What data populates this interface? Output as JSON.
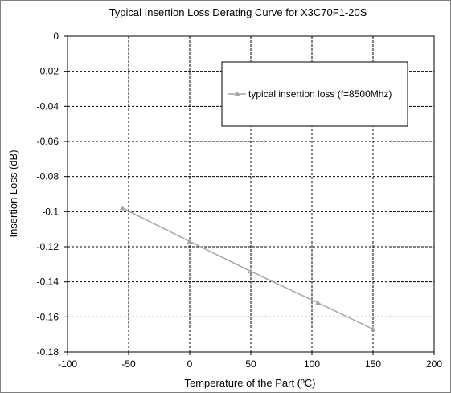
{
  "chart_data": {
    "type": "line",
    "title": "Typical Insertion Loss Derating Curve for X3C70F1-20S",
    "xlabel": "Temperature of the Part (ºC)",
    "ylabel": "Insertion Loss (dB)",
    "xlim": [
      -100,
      200
    ],
    "ylim": [
      -0.18,
      0
    ],
    "x_ticks": [
      "-100",
      "-50",
      "0",
      "50",
      "100",
      "150",
      "200"
    ],
    "y_ticks": [
      "0",
      "-0.02",
      "-0.04",
      "-0.06",
      "-0.08",
      "-0.1",
      "-0.12",
      "-0.14",
      "-0.16",
      "-0.18"
    ],
    "x_tick_values": [
      -100,
      -50,
      0,
      50,
      100,
      150,
      200
    ],
    "y_tick_values": [
      0,
      -0.02,
      -0.04,
      -0.06,
      -0.08,
      -0.1,
      -0.12,
      -0.14,
      -0.16,
      -0.18
    ],
    "grid": true,
    "legend_position": "top-right",
    "series": [
      {
        "name": "typical insertion loss (f=8500Mhz)",
        "color": "#a6a6a6",
        "marker": "triangle",
        "x": [
          -55,
          0,
          50,
          105,
          150
        ],
        "y": [
          -0.098,
          -0.117,
          -0.134,
          -0.152,
          -0.167
        ]
      }
    ]
  }
}
